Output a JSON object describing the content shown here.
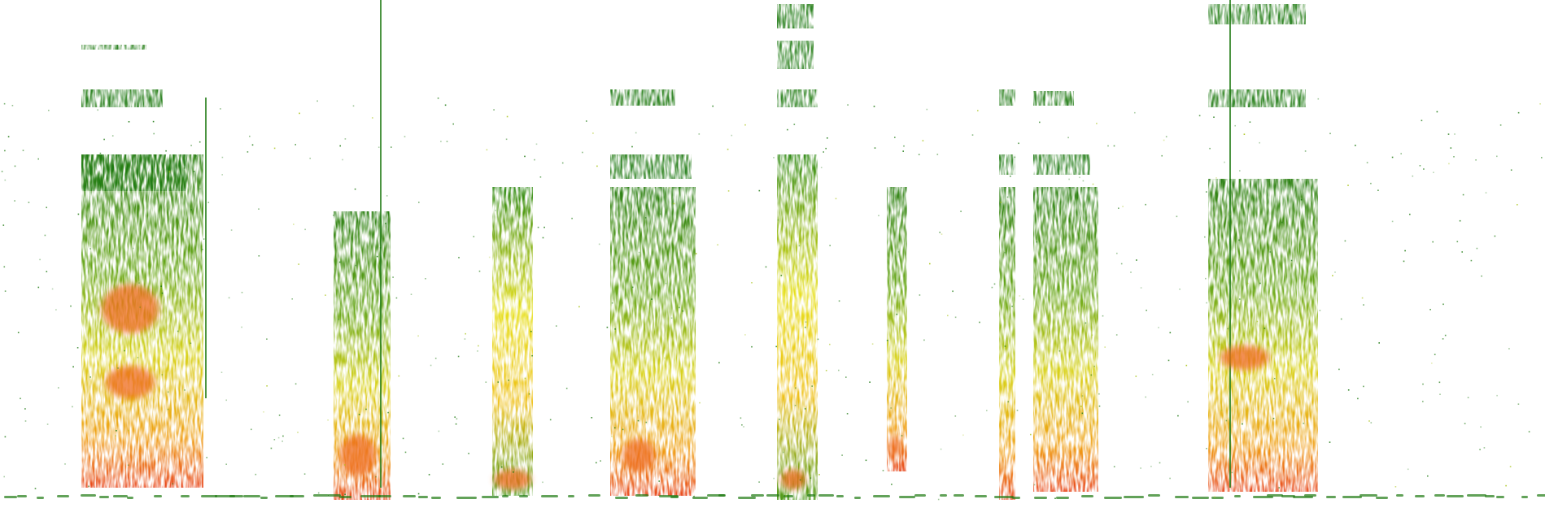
{
  "image": {
    "kind": "spectrogram",
    "background": "#ffffff",
    "colormap": [
      "#1f7a12",
      "#4f9a1c",
      "#a8c417",
      "#e8e21a",
      "#f0b019",
      "#ee6a1c",
      "#e8381f"
    ],
    "segments_count": 9
  }
}
